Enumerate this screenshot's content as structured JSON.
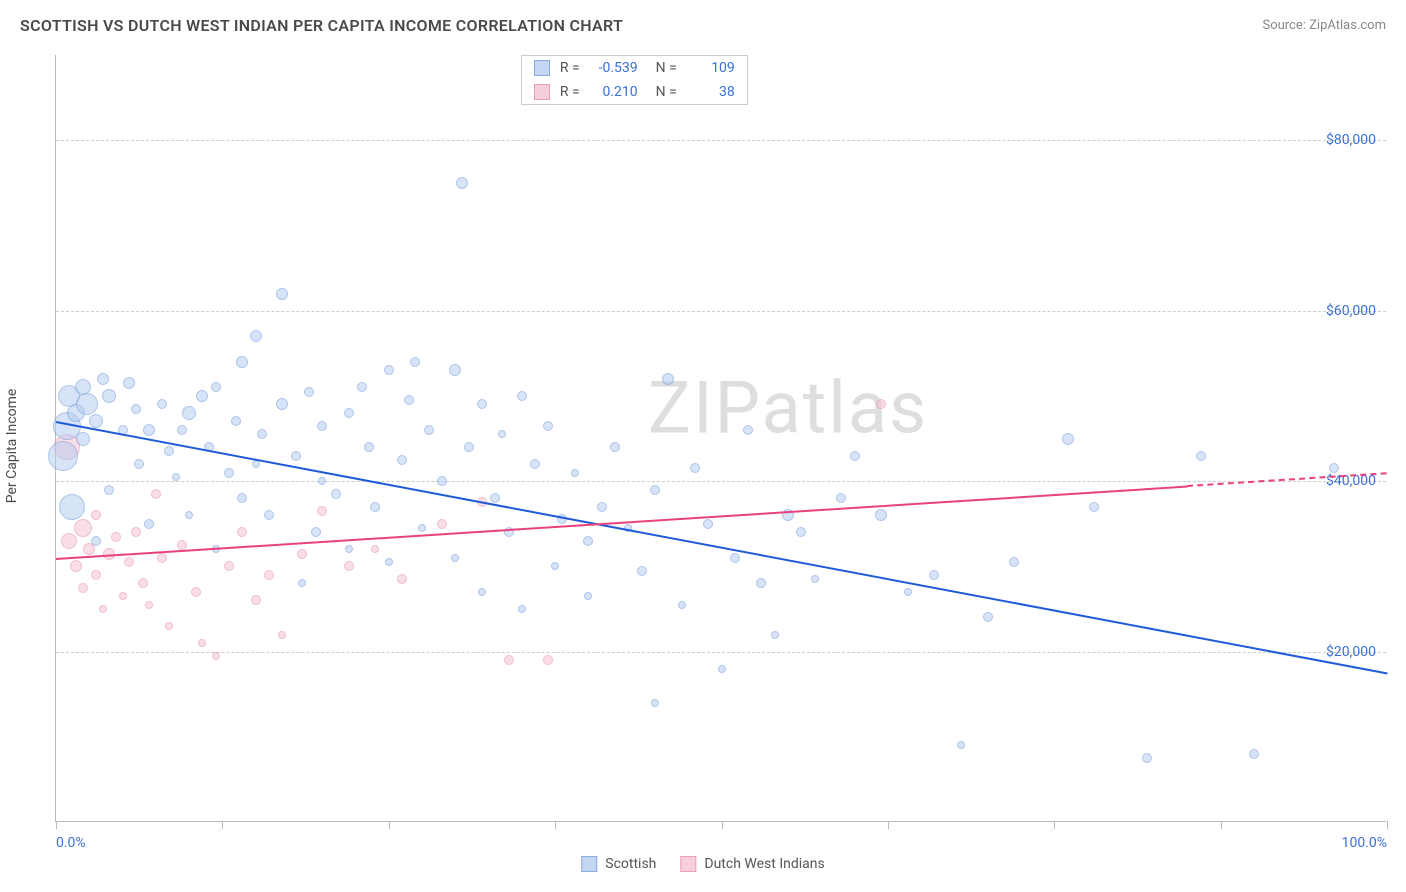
{
  "title": "SCOTTISH VS DUTCH WEST INDIAN PER CAPITA INCOME CORRELATION CHART",
  "source": "Source: ZipAtlas.com",
  "ylabel": "Per Capita Income",
  "watermark": "ZIPatlas",
  "chart": {
    "type": "scatter",
    "xlim": [
      0,
      100
    ],
    "ylim": [
      0,
      90000
    ],
    "ytick_step": 20000,
    "yticks": [
      20000,
      40000,
      60000,
      80000
    ],
    "ytick_labels": [
      "$20,000",
      "$40,000",
      "$60,000",
      "$80,000"
    ],
    "xtick_positions": [
      0,
      12.5,
      25,
      37.5,
      50,
      62.5,
      75,
      87.5,
      100
    ],
    "xtick_labels": {
      "0": "0.0%",
      "100": "100.0%"
    },
    "grid_color": "#cccccc",
    "axis_color": "#bbbbbb",
    "background_color": "#ffffff",
    "label_color": "#3b6fd6"
  },
  "series": {
    "a": {
      "name": "Scottish",
      "fill": "#b7cdef",
      "stroke": "#6c98da",
      "trend_color": "#1f5bd8",
      "fill_opacity": 0.55,
      "r_label": "R =",
      "r_value": "-0.539",
      "n_label": "N =",
      "n_value": "109",
      "trend": {
        "x1": 0,
        "y1": 47000,
        "x2": 100,
        "y2": 17500
      },
      "points": [
        {
          "x": 0.5,
          "y": 43000,
          "s": 30
        },
        {
          "x": 0.8,
          "y": 46500,
          "s": 28
        },
        {
          "x": 1,
          "y": 50000,
          "s": 22
        },
        {
          "x": 1.2,
          "y": 37000,
          "s": 26
        },
        {
          "x": 1.5,
          "y": 48000,
          "s": 18
        },
        {
          "x": 2,
          "y": 51000,
          "s": 16
        },
        {
          "x": 2,
          "y": 45000,
          "s": 14
        },
        {
          "x": 2.3,
          "y": 49000,
          "s": 22
        },
        {
          "x": 3,
          "y": 47000,
          "s": 14
        },
        {
          "x": 3,
          "y": 33000,
          "s": 10
        },
        {
          "x": 3.5,
          "y": 52000,
          "s": 12
        },
        {
          "x": 4,
          "y": 50000,
          "s": 14
        },
        {
          "x": 4,
          "y": 39000,
          "s": 10
        },
        {
          "x": 5,
          "y": 46000,
          "s": 10
        },
        {
          "x": 5.5,
          "y": 51500,
          "s": 12
        },
        {
          "x": 6,
          "y": 48500,
          "s": 10
        },
        {
          "x": 6.2,
          "y": 42000,
          "s": 10
        },
        {
          "x": 7,
          "y": 46000,
          "s": 12
        },
        {
          "x": 7,
          "y": 35000,
          "s": 10
        },
        {
          "x": 8,
          "y": 49000,
          "s": 10
        },
        {
          "x": 8.5,
          "y": 43500,
          "s": 10
        },
        {
          "x": 9,
          "y": 40500,
          "s": 8
        },
        {
          "x": 9.5,
          "y": 46000,
          "s": 10
        },
        {
          "x": 10,
          "y": 48000,
          "s": 14
        },
        {
          "x": 10,
          "y": 36000,
          "s": 8
        },
        {
          "x": 11,
          "y": 50000,
          "s": 12
        },
        {
          "x": 11.5,
          "y": 44000,
          "s": 10
        },
        {
          "x": 12,
          "y": 51000,
          "s": 10
        },
        {
          "x": 12,
          "y": 32000,
          "s": 8
        },
        {
          "x": 13,
          "y": 41000,
          "s": 10
        },
        {
          "x": 13.5,
          "y": 47000,
          "s": 10
        },
        {
          "x": 14,
          "y": 54000,
          "s": 12
        },
        {
          "x": 14,
          "y": 38000,
          "s": 10
        },
        {
          "x": 15,
          "y": 57000,
          "s": 12
        },
        {
          "x": 15,
          "y": 42000,
          "s": 8
        },
        {
          "x": 15.5,
          "y": 45500,
          "s": 10
        },
        {
          "x": 16,
          "y": 36000,
          "s": 10
        },
        {
          "x": 17,
          "y": 49000,
          "s": 12
        },
        {
          "x": 17,
          "y": 62000,
          "s": 12
        },
        {
          "x": 18,
          "y": 43000,
          "s": 10
        },
        {
          "x": 18.5,
          "y": 28000,
          "s": 8
        },
        {
          "x": 19,
          "y": 50500,
          "s": 10
        },
        {
          "x": 19.5,
          "y": 34000,
          "s": 10
        },
        {
          "x": 20,
          "y": 46500,
          "s": 10
        },
        {
          "x": 20,
          "y": 40000,
          "s": 8
        },
        {
          "x": 21,
          "y": 38500,
          "s": 10
        },
        {
          "x": 22,
          "y": 48000,
          "s": 10
        },
        {
          "x": 22,
          "y": 32000,
          "s": 8
        },
        {
          "x": 23,
          "y": 51000,
          "s": 10
        },
        {
          "x": 23.5,
          "y": 44000,
          "s": 10
        },
        {
          "x": 24,
          "y": 37000,
          "s": 10
        },
        {
          "x": 25,
          "y": 53000,
          "s": 10
        },
        {
          "x": 25,
          "y": 30500,
          "s": 8
        },
        {
          "x": 26,
          "y": 42500,
          "s": 10
        },
        {
          "x": 26.5,
          "y": 49500,
          "s": 10
        },
        {
          "x": 27,
          "y": 54000,
          "s": 10
        },
        {
          "x": 27.5,
          "y": 34500,
          "s": 8
        },
        {
          "x": 28,
          "y": 46000,
          "s": 10
        },
        {
          "x": 29,
          "y": 40000,
          "s": 10
        },
        {
          "x": 30,
          "y": 53000,
          "s": 12
        },
        {
          "x": 30,
          "y": 31000,
          "s": 8
        },
        {
          "x": 30.5,
          "y": 75000,
          "s": 12
        },
        {
          "x": 31,
          "y": 44000,
          "s": 10
        },
        {
          "x": 32,
          "y": 49000,
          "s": 10
        },
        {
          "x": 32,
          "y": 27000,
          "s": 8
        },
        {
          "x": 33,
          "y": 38000,
          "s": 10
        },
        {
          "x": 33.5,
          "y": 45500,
          "s": 8
        },
        {
          "x": 34,
          "y": 34000,
          "s": 10
        },
        {
          "x": 35,
          "y": 50000,
          "s": 10
        },
        {
          "x": 35,
          "y": 25000,
          "s": 8
        },
        {
          "x": 36,
          "y": 42000,
          "s": 10
        },
        {
          "x": 37,
          "y": 46500,
          "s": 10
        },
        {
          "x": 37.5,
          "y": 30000,
          "s": 8
        },
        {
          "x": 38,
          "y": 35500,
          "s": 10
        },
        {
          "x": 39,
          "y": 41000,
          "s": 8
        },
        {
          "x": 40,
          "y": 33000,
          "s": 10
        },
        {
          "x": 40,
          "y": 26500,
          "s": 8
        },
        {
          "x": 41,
          "y": 37000,
          "s": 10
        },
        {
          "x": 42,
          "y": 44000,
          "s": 10
        },
        {
          "x": 43,
          "y": 34500,
          "s": 8
        },
        {
          "x": 44,
          "y": 29500,
          "s": 10
        },
        {
          "x": 45,
          "y": 39000,
          "s": 10
        },
        {
          "x": 45,
          "y": 14000,
          "s": 8
        },
        {
          "x": 46,
          "y": 52000,
          "s": 12
        },
        {
          "x": 47,
          "y": 25500,
          "s": 8
        },
        {
          "x": 48,
          "y": 41500,
          "s": 10
        },
        {
          "x": 49,
          "y": 35000,
          "s": 10
        },
        {
          "x": 50,
          "y": 18000,
          "s": 8
        },
        {
          "x": 51,
          "y": 31000,
          "s": 10
        },
        {
          "x": 52,
          "y": 46000,
          "s": 10
        },
        {
          "x": 53,
          "y": 28000,
          "s": 10
        },
        {
          "x": 54,
          "y": 22000,
          "s": 8
        },
        {
          "x": 55,
          "y": 36000,
          "s": 12
        },
        {
          "x": 56,
          "y": 34000,
          "s": 10
        },
        {
          "x": 57,
          "y": 28500,
          "s": 8
        },
        {
          "x": 59,
          "y": 38000,
          "s": 10
        },
        {
          "x": 60,
          "y": 43000,
          "s": 10
        },
        {
          "x": 62,
          "y": 36000,
          "s": 12
        },
        {
          "x": 64,
          "y": 27000,
          "s": 8
        },
        {
          "x": 66,
          "y": 29000,
          "s": 10
        },
        {
          "x": 68,
          "y": 9000,
          "s": 8
        },
        {
          "x": 70,
          "y": 24000,
          "s": 10
        },
        {
          "x": 72,
          "y": 30500,
          "s": 10
        },
        {
          "x": 76,
          "y": 45000,
          "s": 12
        },
        {
          "x": 78,
          "y": 37000,
          "s": 10
        },
        {
          "x": 82,
          "y": 7500,
          "s": 10
        },
        {
          "x": 86,
          "y": 43000,
          "s": 10
        },
        {
          "x": 90,
          "y": 8000,
          "s": 10
        },
        {
          "x": 96,
          "y": 41500,
          "s": 10
        }
      ]
    },
    "b": {
      "name": "Dutch West Indians",
      "fill": "#f6c4d4",
      "stroke": "#e48aaa",
      "trend_color": "#e8427a",
      "fill_opacity": 0.55,
      "r_label": "R =",
      "r_value": "0.210",
      "n_label": "N =",
      "n_value": "38",
      "trend_solid": {
        "x1": 0,
        "y1": 31000,
        "x2": 85,
        "y2": 39500
      },
      "trend_dash": {
        "x1": 85,
        "y1": 39500,
        "x2": 100,
        "y2": 41000
      },
      "points": [
        {
          "x": 0.8,
          "y": 44000,
          "s": 26
        },
        {
          "x": 1,
          "y": 33000,
          "s": 16
        },
        {
          "x": 1.5,
          "y": 30000,
          "s": 12
        },
        {
          "x": 2,
          "y": 34500,
          "s": 18
        },
        {
          "x": 2,
          "y": 27500,
          "s": 10
        },
        {
          "x": 2.5,
          "y": 32000,
          "s": 12
        },
        {
          "x": 3,
          "y": 36000,
          "s": 10
        },
        {
          "x": 3,
          "y": 29000,
          "s": 10
        },
        {
          "x": 3.5,
          "y": 25000,
          "s": 8
        },
        {
          "x": 4,
          "y": 31500,
          "s": 12
        },
        {
          "x": 4.5,
          "y": 33500,
          "s": 10
        },
        {
          "x": 5,
          "y": 26500,
          "s": 8
        },
        {
          "x": 5.5,
          "y": 30500,
          "s": 10
        },
        {
          "x": 6,
          "y": 34000,
          "s": 10
        },
        {
          "x": 6.5,
          "y": 28000,
          "s": 10
        },
        {
          "x": 7,
          "y": 25500,
          "s": 8
        },
        {
          "x": 7.5,
          "y": 38500,
          "s": 10
        },
        {
          "x": 8,
          "y": 31000,
          "s": 10
        },
        {
          "x": 8.5,
          "y": 23000,
          "s": 8
        },
        {
          "x": 9.5,
          "y": 32500,
          "s": 10
        },
        {
          "x": 10.5,
          "y": 27000,
          "s": 10
        },
        {
          "x": 11,
          "y": 21000,
          "s": 8
        },
        {
          "x": 12,
          "y": 19500,
          "s": 8
        },
        {
          "x": 13,
          "y": 30000,
          "s": 10
        },
        {
          "x": 14,
          "y": 34000,
          "s": 10
        },
        {
          "x": 15,
          "y": 26000,
          "s": 10
        },
        {
          "x": 16,
          "y": 29000,
          "s": 10
        },
        {
          "x": 17,
          "y": 22000,
          "s": 8
        },
        {
          "x": 18.5,
          "y": 31500,
          "s": 10
        },
        {
          "x": 20,
          "y": 36500,
          "s": 10
        },
        {
          "x": 22,
          "y": 30000,
          "s": 10
        },
        {
          "x": 24,
          "y": 32000,
          "s": 8
        },
        {
          "x": 26,
          "y": 28500,
          "s": 10
        },
        {
          "x": 29,
          "y": 35000,
          "s": 10
        },
        {
          "x": 32,
          "y": 37500,
          "s": 10
        },
        {
          "x": 34,
          "y": 19000,
          "s": 10
        },
        {
          "x": 37,
          "y": 19000,
          "s": 10
        },
        {
          "x": 62,
          "y": 49000,
          "s": 10
        }
      ]
    }
  },
  "bottom_legend": [
    {
      "key": "a"
    },
    {
      "key": "b"
    }
  ]
}
